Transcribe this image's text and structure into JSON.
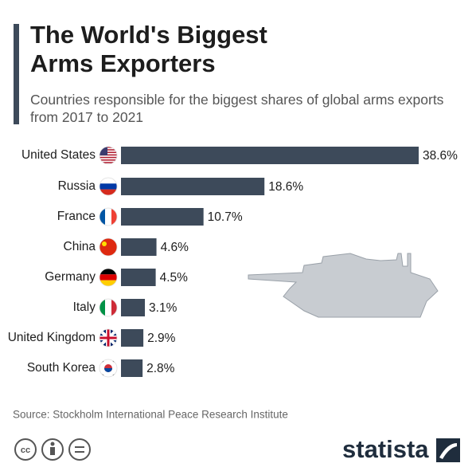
{
  "chart_data": {
    "type": "bar",
    "orientation": "horizontal",
    "title": "The World's Biggest Arms Exporters",
    "subtitle": "Countries responsible for the biggest shares of global arms exports from 2017 to 2021",
    "categories": [
      "United States",
      "Russia",
      "France",
      "China",
      "Germany",
      "Italy",
      "United Kingdom",
      "South Korea"
    ],
    "values": [
      38.6,
      18.6,
      10.7,
      4.6,
      4.5,
      3.1,
      2.9,
      2.8
    ],
    "value_labels": [
      "38.6%",
      "18.6%",
      "10.7%",
      "4.6%",
      "4.5%",
      "3.1%",
      "2.9%",
      "2.8%"
    ],
    "color": "#3d4a5a",
    "source": "Source: Stockholm International Peace Research Institute",
    "brand": "statista"
  }
}
